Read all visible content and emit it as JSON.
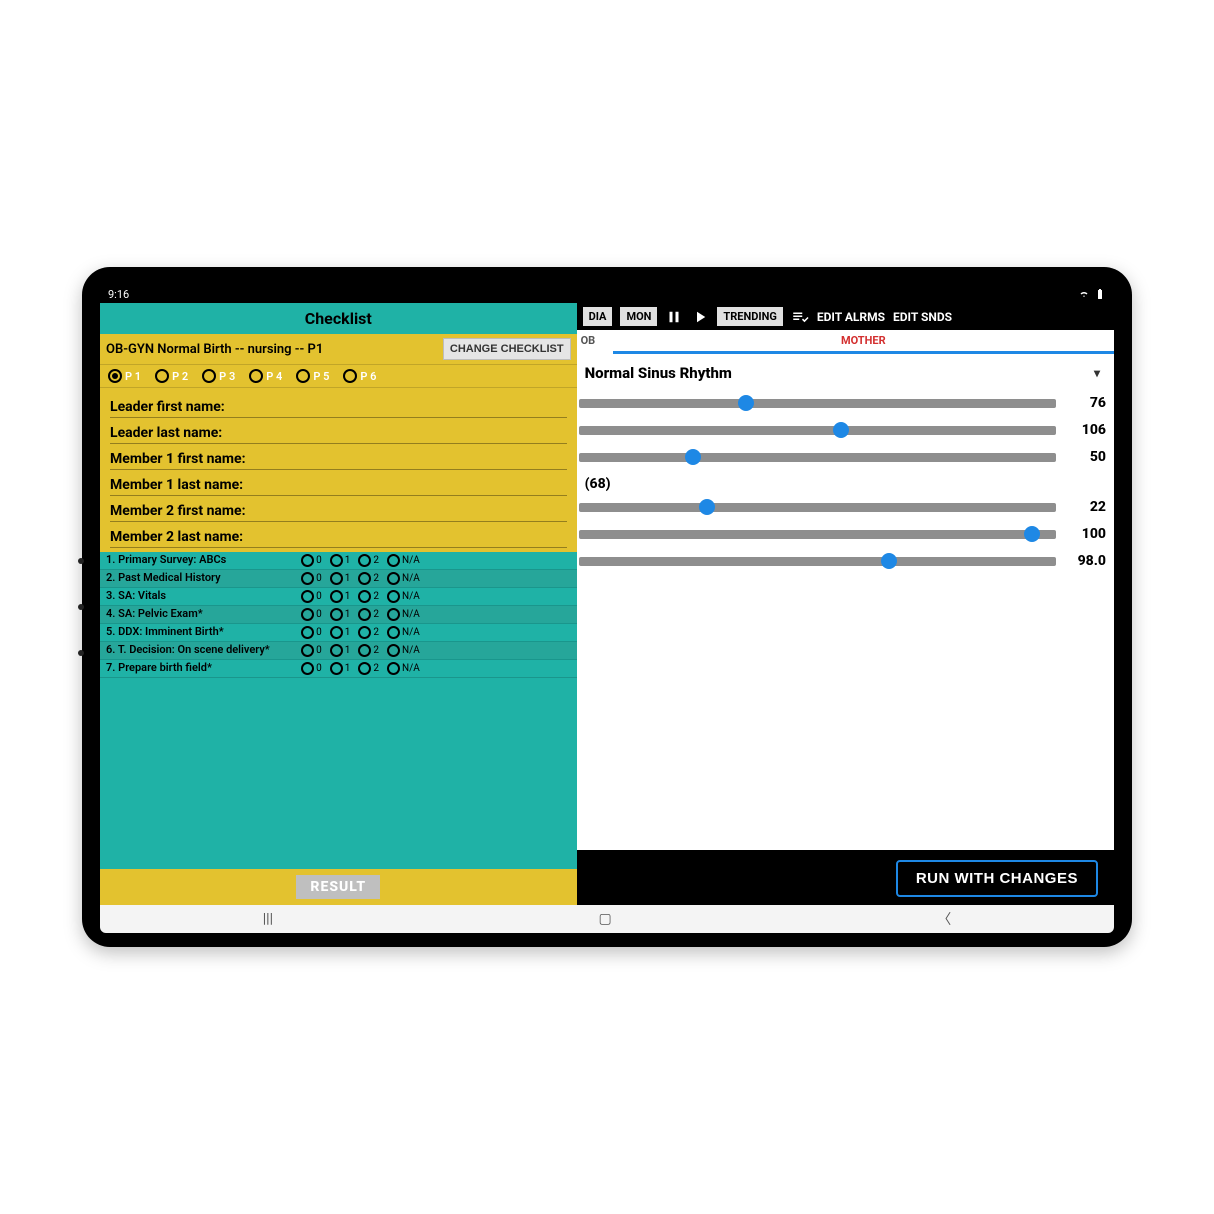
{
  "status": {
    "time": "9:16"
  },
  "colors": {
    "teal": "#1fb2a6",
    "teal_alt": "#26a69a",
    "yellow": "#e3c22f",
    "blue": "#1e88e5",
    "mother_red": "#d32f2f",
    "slider_track": "#8e8e8e"
  },
  "left": {
    "title": "Checklist",
    "checklist_name": "OB-GYN Normal Birth -- nursing -- P1",
    "change_btn": "CHANGE CHECKLIST",
    "p_tabs": [
      {
        "label": "P 1",
        "selected": true
      },
      {
        "label": "P 2",
        "selected": false
      },
      {
        "label": "P 3",
        "selected": false
      },
      {
        "label": "P 4",
        "selected": false
      },
      {
        "label": "P 5",
        "selected": false
      },
      {
        "label": "P 6",
        "selected": false
      }
    ],
    "name_fields": [
      "Leader first name:",
      "Leader last name:",
      "Member 1 first name:",
      "Member 1 last name:",
      "Member 2 first name:",
      "Member 2 last name:"
    ],
    "option_labels": [
      "0",
      "1",
      "2",
      "N/A"
    ],
    "items": [
      "1. Primary Survey: ABCs",
      "2. Past Medical History",
      "3. SA: Vitals",
      "4. SA: Pelvic Exam*",
      "5. DDX:  Imminent Birth*",
      "6. T. Decision: On scene delivery*",
      "7. Prepare birth field*"
    ],
    "result_btn": "RESULT"
  },
  "right": {
    "toolbar": {
      "dia_btn": "DIA",
      "mon_btn": "MON",
      "trending_btn": "TRENDING",
      "edit_alarms": "EDIT ALRMS",
      "edit_sounds": "EDIT SNDS"
    },
    "tabs": {
      "ob": "OB",
      "mother": "MOTHER"
    },
    "rhythm_title": "Normal Sinus Rhythm",
    "inline_label": "(68)",
    "sliders": [
      {
        "value": "76",
        "thumb_pct": 35
      },
      {
        "value": "106",
        "thumb_pct": 55
      },
      {
        "value": "50",
        "thumb_pct": 24
      },
      {
        "value": "22",
        "thumb_pct": 27
      },
      {
        "value": "100",
        "thumb_pct": 95
      },
      {
        "value": "98.0",
        "thumb_pct": 65
      }
    ],
    "run_btn": "RUN WITH CHANGES"
  }
}
